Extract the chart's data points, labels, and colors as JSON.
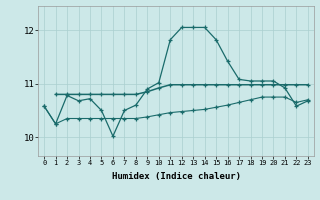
{
  "xlabel": "Humidex (Indice chaleur)",
  "xlim": [
    -0.5,
    23.5
  ],
  "ylim": [
    9.65,
    12.45
  ],
  "yticks": [
    10,
    11,
    12
  ],
  "xticks": [
    0,
    1,
    2,
    3,
    4,
    5,
    6,
    7,
    8,
    9,
    10,
    11,
    12,
    13,
    14,
    15,
    16,
    17,
    18,
    19,
    20,
    21,
    22,
    23
  ],
  "bg_color": "#cce8e8",
  "line_color": "#1a6b6b",
  "grid_color": "#aacfcf",
  "line1_x": [
    0,
    1,
    2,
    3,
    4,
    5,
    6,
    7,
    8,
    9,
    10,
    11,
    12,
    13,
    14,
    15,
    16,
    17,
    18,
    19,
    20,
    21,
    22,
    23
  ],
  "line1_y": [
    10.58,
    10.25,
    10.78,
    10.68,
    10.72,
    10.5,
    10.02,
    10.5,
    10.6,
    10.9,
    11.02,
    11.82,
    12.05,
    12.05,
    12.05,
    11.82,
    11.42,
    11.08,
    11.05,
    11.05,
    11.05,
    10.92,
    10.58,
    10.68
  ],
  "line2_x": [
    1,
    2,
    3,
    4,
    5,
    6,
    7,
    8,
    9,
    10,
    11,
    12,
    13,
    14,
    15,
    16,
    17,
    18,
    19,
    20,
    21,
    22,
    23
  ],
  "line2_y": [
    10.8,
    10.8,
    10.8,
    10.8,
    10.8,
    10.8,
    10.8,
    10.8,
    10.85,
    10.92,
    10.98,
    10.98,
    10.98,
    10.98,
    10.98,
    10.98,
    10.98,
    10.98,
    10.98,
    10.98,
    10.98,
    10.98,
    10.98
  ],
  "line3_x": [
    0,
    1,
    2,
    3,
    4,
    5,
    6,
    7,
    8,
    9,
    10,
    11,
    12,
    13,
    14,
    15,
    16,
    17,
    18,
    19,
    20,
    21,
    22,
    23
  ],
  "line3_y": [
    10.58,
    10.25,
    10.35,
    10.35,
    10.35,
    10.35,
    10.35,
    10.35,
    10.35,
    10.38,
    10.42,
    10.46,
    10.48,
    10.5,
    10.52,
    10.56,
    10.6,
    10.65,
    10.7,
    10.75,
    10.75,
    10.75,
    10.65,
    10.7
  ]
}
